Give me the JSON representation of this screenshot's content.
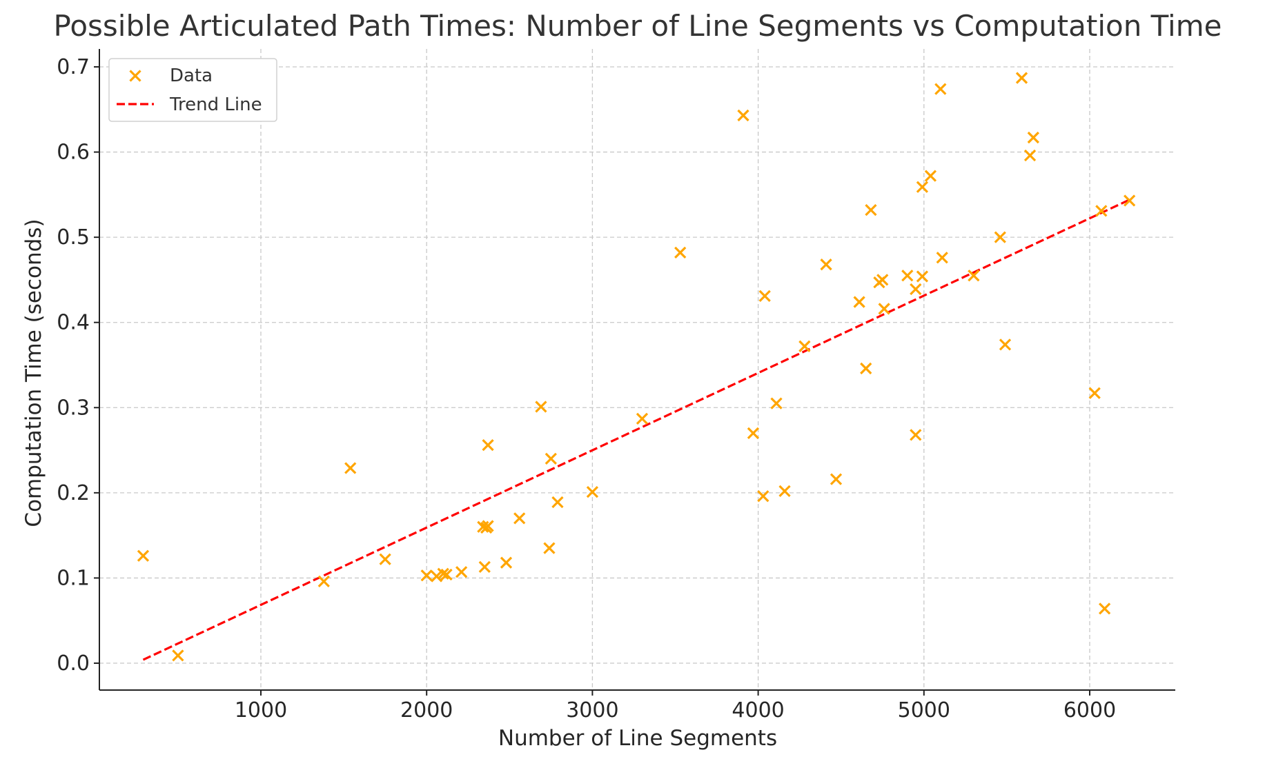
{
  "chart_data": {
    "type": "scatter",
    "title": "Possible Articulated Path Times: Number of Line Segments vs Computation Time",
    "xlabel": "Number of Line Segments",
    "ylabel": "Computation Time (seconds)",
    "xlim": [
      0,
      6540
    ],
    "ylim": [
      -0.03,
      0.72
    ],
    "x_ticks": [
      1000,
      2000,
      3000,
      4000,
      5000,
      6000
    ],
    "y_ticks": [
      0.0,
      0.1,
      0.2,
      0.3,
      0.4,
      0.5,
      0.6,
      0.7
    ],
    "x_tick_labels": [
      "1000",
      "2000",
      "3000",
      "4000",
      "5000",
      "6000"
    ],
    "y_tick_labels": [
      "0.0",
      "0.1",
      "0.2",
      "0.3",
      "0.4",
      "0.5",
      "0.6",
      "0.7"
    ],
    "grid": true,
    "legend_position": "top-left",
    "series": [
      {
        "name": "Data",
        "kind": "scatter",
        "marker": "x",
        "color": "#FFA500",
        "points": [
          [
            290,
            0.126
          ],
          [
            500,
            0.009
          ],
          [
            1380,
            0.096
          ],
          [
            1540,
            0.229
          ],
          [
            1750,
            0.122
          ],
          [
            2000,
            0.103
          ],
          [
            2060,
            0.102
          ],
          [
            2100,
            0.105
          ],
          [
            2120,
            0.104
          ],
          [
            2210,
            0.107
          ],
          [
            2340,
            0.16
          ],
          [
            2350,
            0.113
          ],
          [
            2360,
            0.159
          ],
          [
            2370,
            0.161
          ],
          [
            2370,
            0.256
          ],
          [
            2480,
            0.118
          ],
          [
            2560,
            0.17
          ],
          [
            2690,
            0.301
          ],
          [
            2740,
            0.135
          ],
          [
            2750,
            0.24
          ],
          [
            2790,
            0.189
          ],
          [
            3000,
            0.201
          ],
          [
            3300,
            0.287
          ],
          [
            3530,
            0.482
          ],
          [
            3910,
            0.643
          ],
          [
            3970,
            0.27
          ],
          [
            4030,
            0.196
          ],
          [
            4040,
            0.431
          ],
          [
            4110,
            0.305
          ],
          [
            4160,
            0.202
          ],
          [
            4280,
            0.372
          ],
          [
            4410,
            0.468
          ],
          [
            4470,
            0.216
          ],
          [
            4610,
            0.424
          ],
          [
            4650,
            0.346
          ],
          [
            4680,
            0.532
          ],
          [
            4730,
            0.447
          ],
          [
            4750,
            0.45
          ],
          [
            4760,
            0.416
          ],
          [
            4900,
            0.455
          ],
          [
            4950,
            0.268
          ],
          [
            4950,
            0.439
          ],
          [
            4990,
            0.454
          ],
          [
            4990,
            0.559
          ],
          [
            5040,
            0.572
          ],
          [
            5100,
            0.674
          ],
          [
            5110,
            0.476
          ],
          [
            5300,
            0.455
          ],
          [
            5460,
            0.5
          ],
          [
            5490,
            0.374
          ],
          [
            5590,
            0.687
          ],
          [
            5640,
            0.596
          ],
          [
            5660,
            0.617
          ],
          [
            6030,
            0.317
          ],
          [
            6070,
            0.531
          ],
          [
            6090,
            0.064
          ],
          [
            6240,
            0.543
          ]
        ]
      },
      {
        "name": "Trend Line",
        "kind": "line",
        "style": "dashed",
        "color": "#FF0000",
        "x": [
          290,
          6240
        ],
        "y": [
          0.004,
          0.544
        ]
      }
    ]
  }
}
